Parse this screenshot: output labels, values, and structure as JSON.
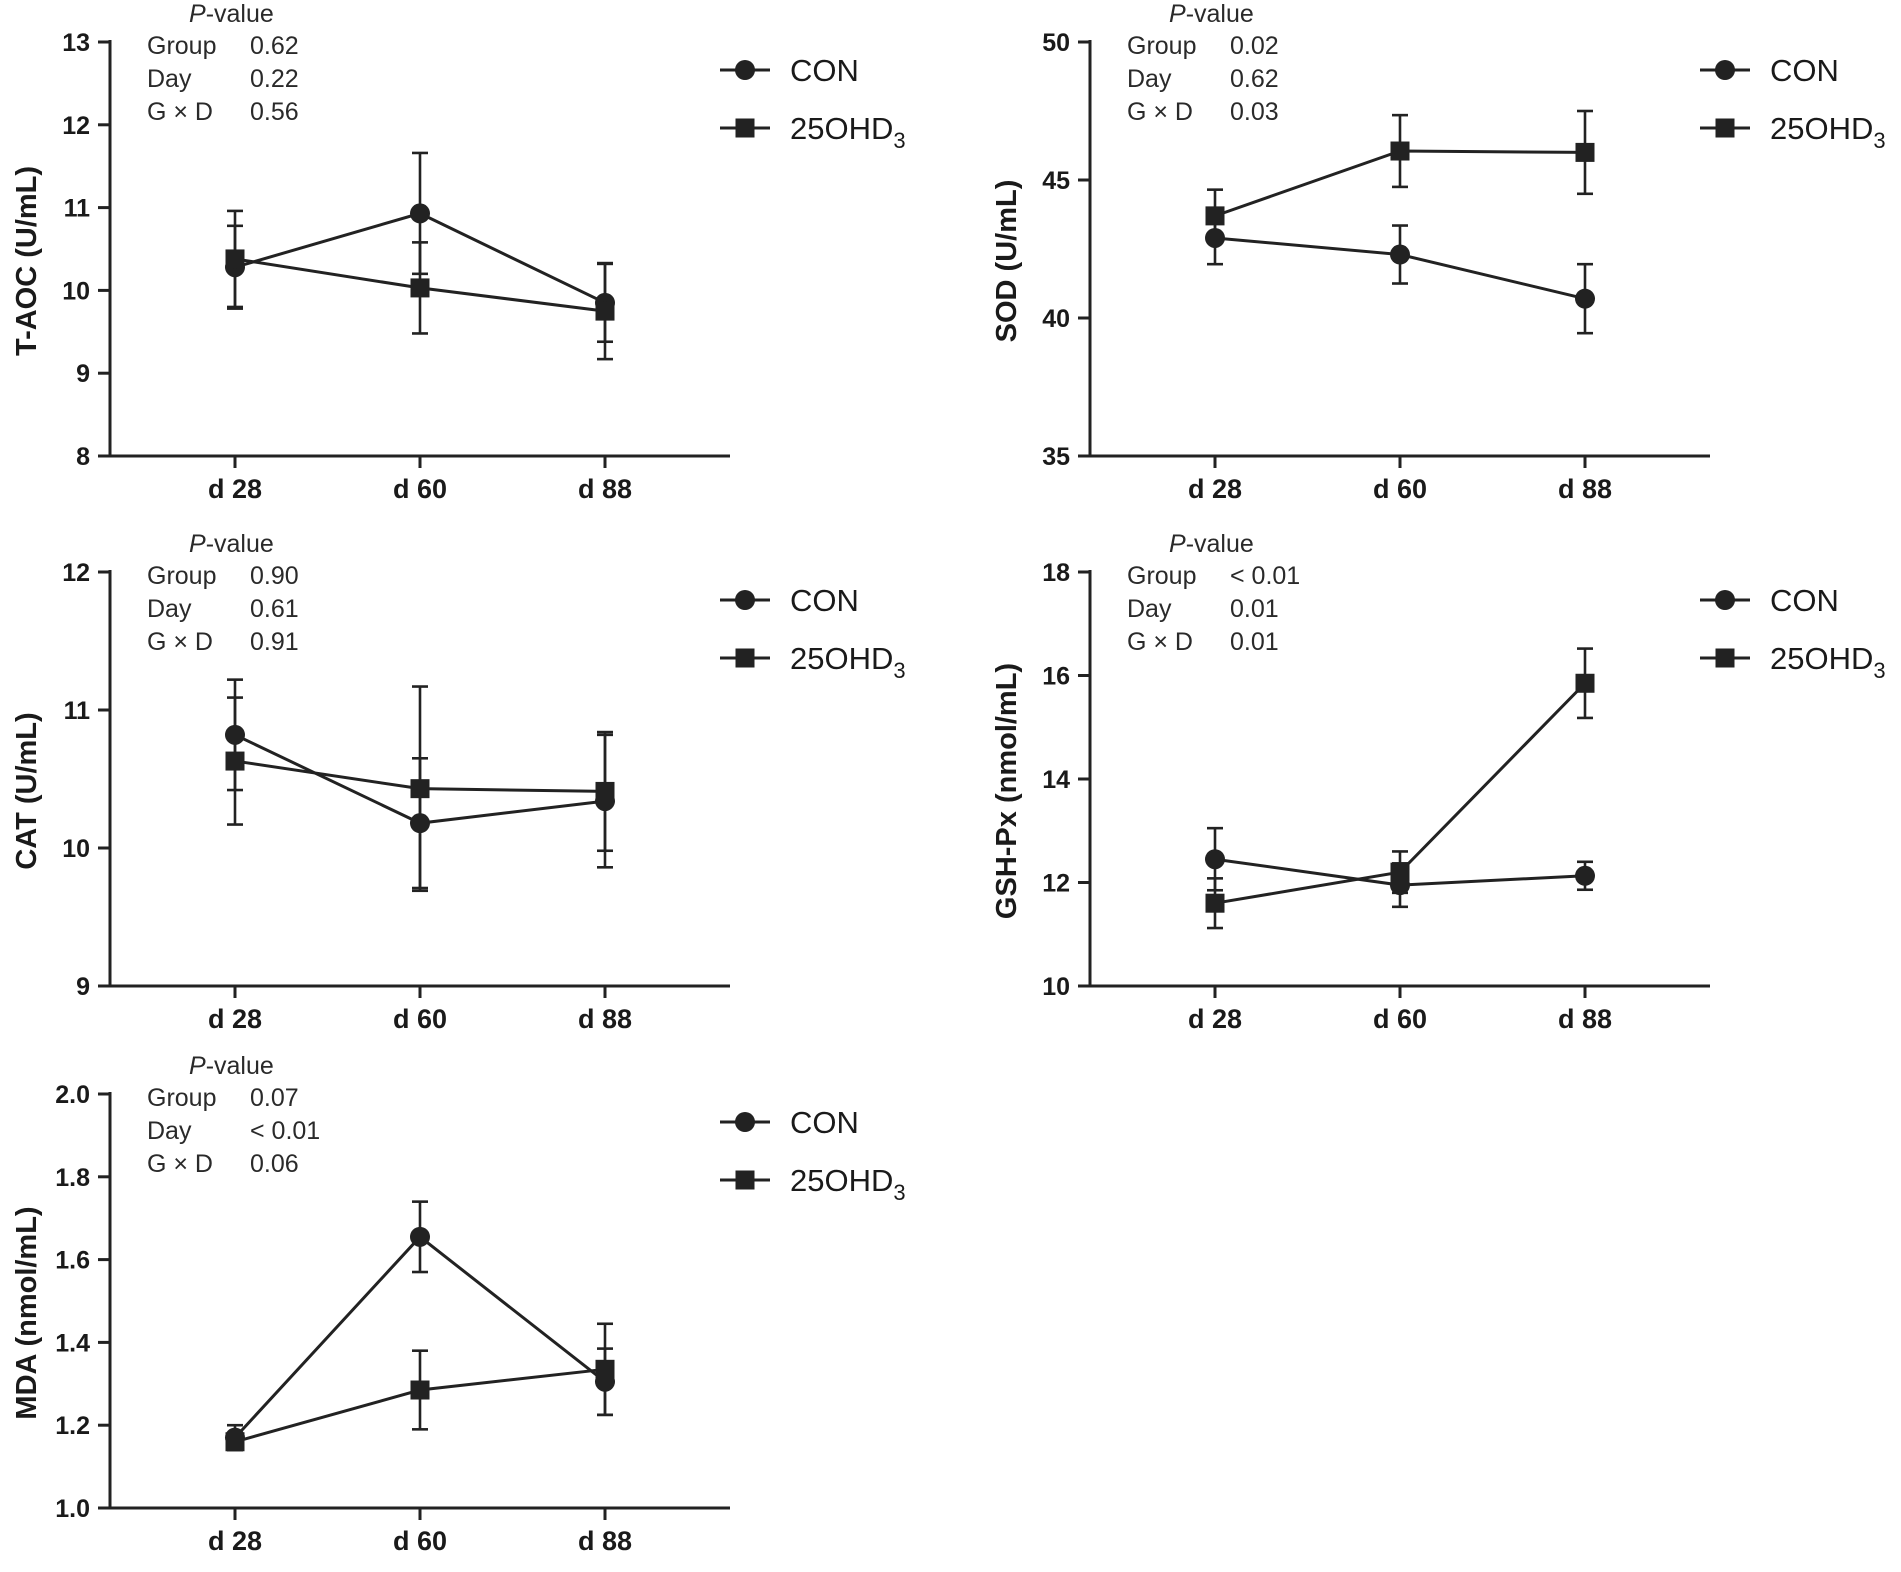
{
  "legend": {
    "con": "CON",
    "ohd_base": "25OHD",
    "ohd_sub": "3"
  },
  "stats_header": {
    "italic": "P",
    "rest": "-value"
  },
  "chart_data": [
    {
      "type": "line",
      "ylabel": "T-AOC (U/mL)",
      "ylim": [
        8,
        13
      ],
      "yticks": [
        "8",
        "9",
        "10",
        "11",
        "12",
        "13"
      ],
      "categories": [
        "d 28",
        "d 60",
        "d 88"
      ],
      "series": [
        {
          "name": "CON",
          "marker": "circle",
          "values": [
            10.28,
            10.93,
            9.85
          ],
          "errors": [
            0.5,
            0.73,
            0.47
          ]
        },
        {
          "name": "25OHD3",
          "marker": "square",
          "values": [
            10.38,
            10.03,
            9.75
          ],
          "errors": [
            0.58,
            0.55,
            0.58
          ]
        }
      ],
      "stats": [
        {
          "label": "Group",
          "value": "0.62"
        },
        {
          "label": "Day",
          "value": "0.22"
        },
        {
          "label": "G × D",
          "value": "0.56"
        }
      ]
    },
    {
      "type": "line",
      "ylabel": "SOD (U/mL)",
      "ylim": [
        35,
        50
      ],
      "yticks": [
        "35",
        "40",
        "45",
        "50"
      ],
      "categories": [
        "d 28",
        "d 60",
        "d 88"
      ],
      "series": [
        {
          "name": "CON",
          "marker": "circle",
          "values": [
            42.9,
            42.3,
            40.7
          ],
          "errors": [
            0.95,
            1.05,
            1.25
          ]
        },
        {
          "name": "25OHD3",
          "marker": "square",
          "values": [
            43.7,
            46.05,
            46.0
          ],
          "errors": [
            0.95,
            1.3,
            1.5
          ]
        }
      ],
      "stats": [
        {
          "label": "Group",
          "value": "0.02"
        },
        {
          "label": "Day",
          "value": "0.62"
        },
        {
          "label": "G × D",
          "value": "0.03"
        }
      ]
    },
    {
      "type": "line",
      "ylabel": "CAT (U/mL)",
      "ylim": [
        9,
        12
      ],
      "yticks": [
        "9",
        "10",
        "11",
        "12"
      ],
      "categories": [
        "d 28",
        "d 60",
        "d 88"
      ],
      "series": [
        {
          "name": "CON",
          "marker": "circle",
          "values": [
            10.82,
            10.18,
            10.34
          ],
          "errors": [
            0.4,
            0.47,
            0.48
          ]
        },
        {
          "name": "25OHD3",
          "marker": "square",
          "values": [
            10.63,
            10.43,
            10.41
          ],
          "errors": [
            0.46,
            0.74,
            0.43
          ]
        }
      ],
      "stats": [
        {
          "label": "Group",
          "value": "0.90"
        },
        {
          "label": "Day",
          "value": "0.61"
        },
        {
          "label": "G × D",
          "value": "0.91"
        }
      ]
    },
    {
      "type": "line",
      "ylabel": "GSH-Px (nmol/mL)",
      "ylim": [
        10,
        18
      ],
      "yticks": [
        "10",
        "12",
        "14",
        "16",
        "18"
      ],
      "categories": [
        "d 28",
        "d 60",
        "d 88"
      ],
      "series": [
        {
          "name": "CON",
          "marker": "circle",
          "values": [
            12.45,
            11.95,
            12.13
          ],
          "errors": [
            0.6,
            0.42,
            0.27
          ]
        },
        {
          "name": "25OHD3",
          "marker": "square",
          "values": [
            11.6,
            12.2,
            15.85
          ],
          "errors": [
            0.48,
            0.4,
            0.67
          ]
        }
      ],
      "stats": [
        {
          "label": "Group",
          "value": "< 0.01"
        },
        {
          "label": "Day",
          "value": "0.01"
        },
        {
          "label": "G × D",
          "value": "0.01"
        }
      ]
    },
    {
      "type": "line",
      "ylabel": "MDA (nmol/mL)",
      "ylim": [
        1.0,
        2.0
      ],
      "yticks": [
        "1.0",
        "1.2",
        "1.4",
        "1.6",
        "1.8",
        "2.0"
      ],
      "categories": [
        "d 28",
        "d 60",
        "d 88"
      ],
      "series": [
        {
          "name": "CON",
          "marker": "circle",
          "values": [
            1.17,
            1.655,
            1.305
          ],
          "errors": [
            0.03,
            0.085,
            0.08
          ]
        },
        {
          "name": "25OHD3",
          "marker": "square",
          "values": [
            1.16,
            1.285,
            1.335
          ],
          "errors": [
            0.02,
            0.095,
            0.11
          ]
        }
      ],
      "stats": [
        {
          "label": "Group",
          "value": "0.07"
        },
        {
          "label": "Day",
          "value": "< 0.01"
        },
        {
          "label": "G × D",
          "value": "0.06"
        }
      ]
    }
  ]
}
